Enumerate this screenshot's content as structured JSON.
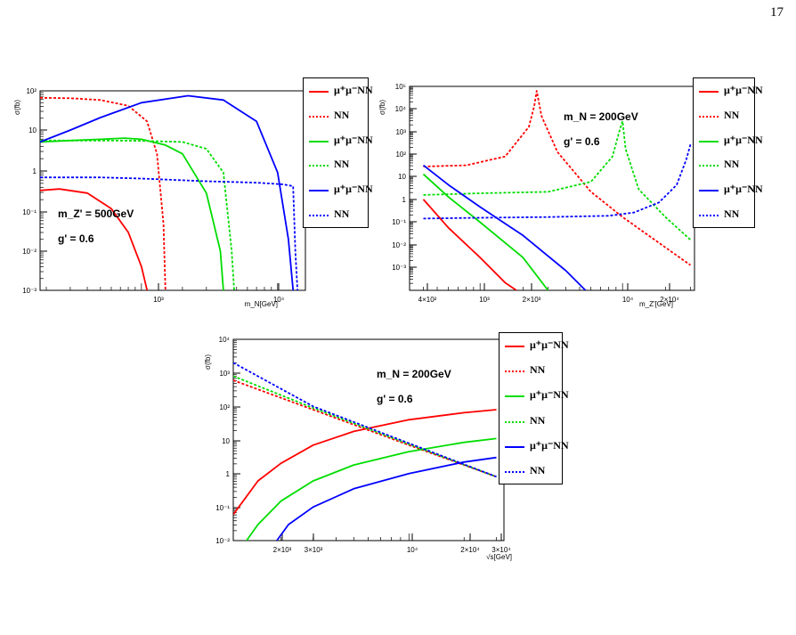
{
  "page_number": "17",
  "chart_data": [
    {
      "type": "line",
      "ylabel": "σ(fb)",
      "xlabel": "m_N[GeV]",
      "xscale": "log",
      "yscale": "log",
      "xlim": [
        180,
        16000
      ],
      "ylim": [
        0.001,
        120
      ],
      "xtick_labels": [
        "10³",
        "10⁴"
      ],
      "ytick_labels": [
        "10²",
        "10",
        "1",
        "10⁻¹",
        "10⁻²",
        "10⁻³"
      ],
      "annotations": [
        "m_Z' = 500GeV",
        "g' = 0.6"
      ],
      "legend": [
        "μ⁺μ⁻NN",
        "NN",
        "μ⁺μ⁻NN",
        "NN",
        "μ⁺μ⁻NN",
        "NN"
      ],
      "series": [
        {
          "color": "#ff0000",
          "style": "solid",
          "x": [
            180,
            250,
            400,
            600,
            800,
            1000,
            1100
          ],
          "y": [
            0.35,
            0.38,
            0.3,
            0.12,
            0.03,
            0.004,
            0.001
          ]
        },
        {
          "color": "#ff0000",
          "style": "dotted",
          "x": [
            180,
            300,
            500,
            800,
            1100,
            1300,
            1450,
            1500
          ],
          "y": [
            80,
            78,
            70,
            50,
            20,
            3,
            0.05,
            0.001
          ]
        },
        {
          "color": "#00dd00",
          "style": "solid",
          "x": [
            180,
            300,
            500,
            750,
            1000,
            1500,
            2000,
            3000,
            3800,
            4000
          ],
          "y": [
            6,
            6.5,
            7,
            7.5,
            7,
            5,
            3,
            0.3,
            0.01,
            0.001
          ]
        },
        {
          "color": "#00dd00",
          "style": "dotted",
          "x": [
            180,
            500,
            1000,
            2000,
            3000,
            4000,
            4600,
            4800
          ],
          "y": [
            6.5,
            6.5,
            6.4,
            6,
            4,
            1,
            0.01,
            0.001
          ]
        },
        {
          "color": "#0000ff",
          "style": "solid",
          "x": [
            180,
            300,
            500,
            1000,
            2200,
            4000,
            7000,
            10000,
            12000,
            13000
          ],
          "y": [
            6,
            12,
            25,
            60,
            90,
            70,
            20,
            1,
            0.02,
            0.001
          ]
        },
        {
          "color": "#0000ff",
          "style": "dotted",
          "x": [
            180,
            500,
            1000,
            3000,
            7000,
            11000,
            13000,
            13500,
            14000
          ],
          "y": [
            0.75,
            0.75,
            0.7,
            0.6,
            0.55,
            0.5,
            0.45,
            0.01,
            0.001
          ]
        }
      ]
    },
    {
      "type": "line",
      "ylabel": "σ(fb)",
      "xlabel": "m_Z'[GeV]",
      "xscale": "log",
      "yscale": "log",
      "xlim": [
        320,
        32000
      ],
      "ylim": [
        0.001,
        120000
      ],
      "xtick_labels": [
        "4×10²",
        "10³",
        "2×10³",
        "10⁴",
        "2×10⁴"
      ],
      "ytick_labels": [
        "10⁵",
        "10⁴",
        "10³",
        "10²",
        "10",
        "1",
        "10⁻¹",
        "10⁻²",
        "10⁻³"
      ],
      "annotations": [
        "m_N = 200GeV",
        "g' = 0.6"
      ],
      "legend": [
        "μ⁺μ⁻NN",
        "NN",
        "μ⁺μ⁻NN",
        "NN",
        "μ⁺μ⁻NN",
        "NN"
      ],
      "series": [
        {
          "color": "#ff0000",
          "style": "solid",
          "x": [
            400,
            600,
            1000,
            1500,
            1800
          ],
          "y": [
            4,
            0.3,
            0.02,
            0.002,
            0.001
          ]
        },
        {
          "color": "#ff0000",
          "style": "dotted",
          "x": [
            400,
            800,
            1500,
            2200,
            2400,
            2500,
            2700,
            3500,
            6000,
            10000,
            20000,
            30000
          ],
          "y": [
            80,
            90,
            200,
            3000,
            20000,
            80000,
            8000,
            300,
            8,
            0.8,
            0.05,
            0.01
          ]
        },
        {
          "color": "#00dd00",
          "style": "solid",
          "x": [
            400,
            600,
            1000,
            2000,
            3000
          ],
          "y": [
            40,
            5,
            0.5,
            0.02,
            0.001
          ]
        },
        {
          "color": "#00dd00",
          "style": "dotted",
          "x": [
            400,
            1000,
            3000,
            6000,
            8500,
            9500,
            10000,
            10500,
            13000,
            20000,
            30000
          ],
          "y": [
            6,
            7,
            8,
            20,
            200,
            2000,
            5000,
            400,
            10,
            0.8,
            0.1
          ]
        },
        {
          "color": "#0000ff",
          "style": "solid",
          "x": [
            400,
            600,
            1000,
            2000,
            4000,
            5500
          ],
          "y": [
            90,
            15,
            2,
            0.15,
            0.006,
            0.001
          ]
        },
        {
          "color": "#0000ff",
          "style": "dotted",
          "x": [
            400,
            1000,
            3000,
            8000,
            12000,
            18000,
            24000,
            28000,
            30000
          ],
          "y": [
            0.7,
            0.75,
            0.8,
            0.9,
            1.2,
            3,
            15,
            150,
            600
          ]
        }
      ]
    },
    {
      "type": "line",
      "ylabel": "σ(fb)",
      "xlabel": "√s[GeV]",
      "xscale": "log",
      "yscale": "log",
      "xlim": [
        1100,
        33000
      ],
      "ylim": [
        0.01,
        10000
      ],
      "xtick_labels": [
        "2×10³",
        "3×10³",
        "10⁴",
        "2×10⁴",
        "3×10⁴"
      ],
      "ytick_labels": [
        "10⁴",
        "10³",
        "10²",
        "10",
        "1",
        "10⁻¹",
        "10⁻²"
      ],
      "annotations": [
        "m_N = 200GeV",
        "g' = 0.6"
      ],
      "legend": [
        "μ⁺μ⁻NN",
        "NN",
        "μ⁺μ⁻NN",
        "NN",
        "μ⁺μ⁻NN",
        "NN"
      ],
      "series": [
        {
          "color": "#ff0000",
          "style": "solid",
          "x": [
            1100,
            1500,
            2000,
            3000,
            5000,
            10000,
            20000,
            30000
          ],
          "y": [
            0.06,
            0.6,
            2,
            7,
            18,
            40,
            65,
            80
          ]
        },
        {
          "color": "#ff0000",
          "style": "dotted",
          "x": [
            1100,
            3000,
            10000,
            30000
          ],
          "y": [
            600,
            80,
            7,
            0.8
          ]
        },
        {
          "color": "#00dd00",
          "style": "solid",
          "x": [
            1300,
            1500,
            2000,
            3000,
            5000,
            10000,
            20000,
            30000
          ],
          "y": [
            0.01,
            0.03,
            0.15,
            0.6,
            1.8,
            4.5,
            8.5,
            11
          ]
        },
        {
          "color": "#00dd00",
          "style": "dotted",
          "x": [
            1100,
            3000,
            10000,
            30000
          ],
          "y": [
            800,
            90,
            7.5,
            0.8
          ]
        },
        {
          "color": "#0000ff",
          "style": "solid",
          "x": [
            1900,
            2200,
            3000,
            5000,
            10000,
            20000,
            30000
          ],
          "y": [
            0.01,
            0.03,
            0.1,
            0.35,
            1,
            2.2,
            3
          ]
        },
        {
          "color": "#0000ff",
          "style": "dotted",
          "x": [
            1100,
            3000,
            10000,
            30000
          ],
          "y": [
            2000,
            100,
            8,
            0.8
          ]
        }
      ]
    }
  ]
}
